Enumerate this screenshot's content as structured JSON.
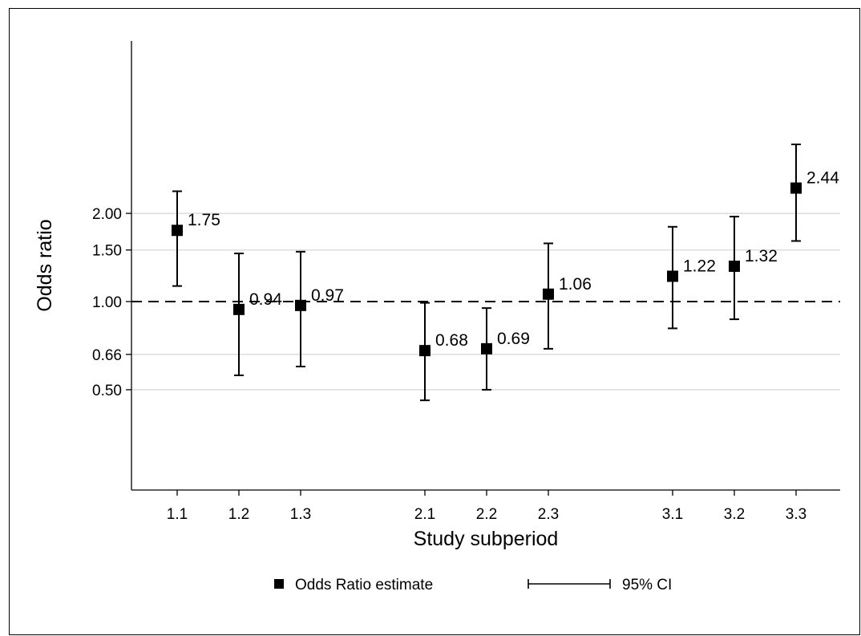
{
  "chart_data": {
    "type": "scatter",
    "xlabel": "Study subperiod",
    "ylabel": "Odds ratio",
    "y_scale": "log",
    "x_ticks": [
      "1.1",
      "1.2",
      "1.3",
      "2.1",
      "2.2",
      "2.3",
      "3.1",
      "3.2",
      "3.3"
    ],
    "y_ticks": [
      {
        "value": 0.5,
        "label": "0.50"
      },
      {
        "value": 0.66,
        "label": "0.66"
      },
      {
        "value": 1.0,
        "label": "1.00"
      },
      {
        "value": 1.5,
        "label": "1.50"
      },
      {
        "value": 2.0,
        "label": "2.00"
      }
    ],
    "reference_line": 1.0,
    "points": [
      {
        "x": 1.1,
        "or": 1.75,
        "lo": 1.13,
        "hi": 2.38,
        "label": "1.75"
      },
      {
        "x": 1.2,
        "or": 0.94,
        "lo": 0.56,
        "hi": 1.46,
        "label": "0.94"
      },
      {
        "x": 1.3,
        "or": 0.97,
        "lo": 0.6,
        "hi": 1.48,
        "label": "0.97"
      },
      {
        "x": 2.1,
        "or": 0.68,
        "lo": 0.46,
        "hi": 0.99,
        "label": "0.68"
      },
      {
        "x": 2.2,
        "or": 0.69,
        "lo": 0.5,
        "hi": 0.95,
        "label": "0.69"
      },
      {
        "x": 2.3,
        "or": 1.06,
        "lo": 0.69,
        "hi": 1.58,
        "label": "1.06"
      },
      {
        "x": 3.1,
        "or": 1.22,
        "lo": 0.81,
        "hi": 1.8,
        "label": "1.22"
      },
      {
        "x": 3.2,
        "or": 1.32,
        "lo": 0.87,
        "hi": 1.95,
        "label": "1.32"
      },
      {
        "x": 3.3,
        "or": 2.44,
        "lo": 1.61,
        "hi": 3.44,
        "label": "2.44"
      }
    ],
    "legend": {
      "position": "bottom",
      "items": [
        {
          "name": "Odds Ratio estimate",
          "symbol": "square"
        },
        {
          "name": "95% CI",
          "symbol": "capped-line"
        }
      ]
    },
    "grid": true
  }
}
